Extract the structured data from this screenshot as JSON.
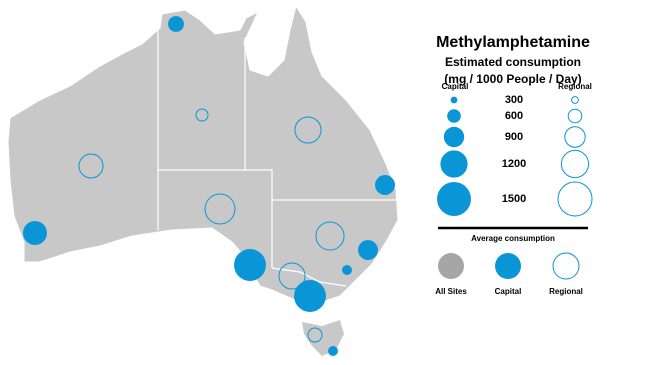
{
  "chart_data": {
    "type": "bubble-map",
    "title": "Methylamphetamine",
    "subtitle": [
      "Estimated consumption",
      "(mg / 1000 People / Day)"
    ],
    "capital_color": "#0a96d6",
    "all_sites_color": "#a6a6a6",
    "capital_values": [
      700,
      1060,
      1410,
      1410,
      880,
      880,
      440,
      440
    ],
    "regional_values": [
      530,
      1150,
      1060,
      1320,
      1240,
      1150,
      620
    ],
    "legend": {
      "capital_label": "Capital",
      "regional_label": "Regional",
      "sizes": [
        300,
        600,
        900,
        1200,
        1500
      ]
    },
    "average": {
      "title": "Average consumption",
      "labels": [
        "All Sites",
        "Capital",
        "Regional"
      ]
    }
  }
}
